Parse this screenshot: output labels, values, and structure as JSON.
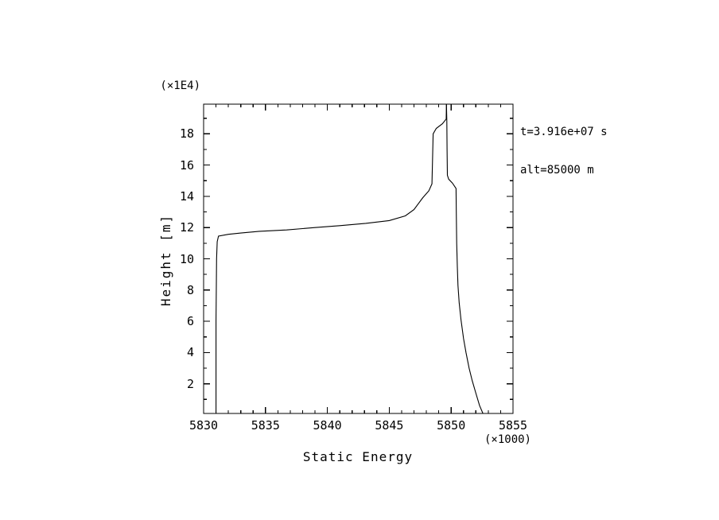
{
  "figure": {
    "background_color": "#ffffff",
    "line_color": "#000000",
    "text_color": "#000000"
  },
  "chart_data": {
    "type": "line",
    "title": "",
    "xlabel": "Static Energy",
    "ylabel": "Height [m]",
    "x_scale_note": "(×1000)",
    "y_scale_note": "(×1E4)",
    "xlim": [
      5830,
      5855
    ],
    "ylim": [
      0.1,
      19.9
    ],
    "grid": false,
    "legend": "none",
    "x_major_ticks": [
      5830,
      5835,
      5840,
      5845,
      5850,
      5855
    ],
    "x_minor_step": 1,
    "y_major_ticks": [
      2,
      4,
      6,
      8,
      10,
      12,
      14,
      16,
      18
    ],
    "y_minor_step": 1,
    "annotations": [
      "t=3.916e+07 s",
      "alt=85000 m"
    ],
    "series": [
      {
        "name": "right-profile",
        "points": [
          [
            5852.57,
            0.1
          ],
          [
            5852.3,
            0.6
          ],
          [
            5852.0,
            1.4
          ],
          [
            5851.7,
            2.2
          ],
          [
            5851.45,
            3.0
          ],
          [
            5851.2,
            4.0
          ],
          [
            5851.0,
            4.9
          ],
          [
            5850.8,
            6.1
          ],
          [
            5850.65,
            7.2
          ],
          [
            5850.55,
            8.3
          ],
          [
            5850.5,
            9.5
          ],
          [
            5850.45,
            11.0
          ],
          [
            5850.42,
            13.0
          ],
          [
            5850.4,
            14.5
          ],
          [
            5850.1,
            14.85
          ],
          [
            5849.8,
            15.1
          ],
          [
            5849.7,
            15.35
          ],
          [
            5849.67,
            17.0
          ],
          [
            5849.65,
            18.8
          ],
          [
            5849.62,
            19.9
          ]
        ]
      },
      {
        "name": "left-profile",
        "points": [
          [
            5831.0,
            0.1
          ],
          [
            5831.0,
            6.0
          ],
          [
            5831.05,
            10.0
          ],
          [
            5831.1,
            11.1
          ],
          [
            5831.2,
            11.45
          ],
          [
            5832.0,
            11.57
          ],
          [
            5833.0,
            11.65
          ],
          [
            5834.5,
            11.76
          ],
          [
            5836.7,
            11.85
          ],
          [
            5839.0,
            12.0
          ],
          [
            5841.0,
            12.12
          ],
          [
            5843.1,
            12.27
          ],
          [
            5845.0,
            12.45
          ],
          [
            5846.3,
            12.75
          ],
          [
            5847.0,
            13.15
          ],
          [
            5847.7,
            13.9
          ],
          [
            5848.2,
            14.35
          ],
          [
            5848.45,
            14.8
          ],
          [
            5848.5,
            16.5
          ],
          [
            5848.55,
            18.0
          ],
          [
            5848.8,
            18.35
          ],
          [
            5849.3,
            18.65
          ],
          [
            5849.6,
            18.95
          ],
          [
            5849.62,
            19.9
          ]
        ]
      }
    ]
  }
}
